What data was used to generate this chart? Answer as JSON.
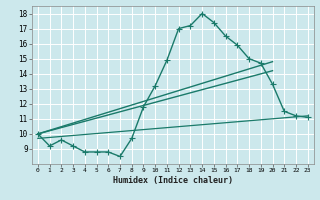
{
  "title": "",
  "xlabel": "Humidex (Indice chaleur)",
  "background_color": "#cce8ec",
  "grid_color": "#ffffff",
  "line_color": "#1a7a6a",
  "xlim": [
    -0.5,
    23.5
  ],
  "ylim": [
    8.0,
    18.5
  ],
  "xticks": [
    0,
    1,
    2,
    3,
    4,
    5,
    6,
    7,
    8,
    9,
    10,
    11,
    12,
    13,
    14,
    15,
    16,
    17,
    18,
    19,
    20,
    21,
    22,
    23
  ],
  "yticks": [
    9,
    10,
    11,
    12,
    13,
    14,
    15,
    16,
    17,
    18
  ],
  "series": [
    {
      "x": [
        0,
        1,
        2,
        3,
        4,
        5,
        6,
        7,
        8,
        9,
        10,
        11,
        12,
        13,
        14,
        15,
        16,
        17,
        18,
        19,
        20,
        21,
        22,
        23
      ],
      "y": [
        10.0,
        9.2,
        9.6,
        9.2,
        8.8,
        8.8,
        8.8,
        8.5,
        9.7,
        11.8,
        13.2,
        14.9,
        17.0,
        17.2,
        18.0,
        17.4,
        16.5,
        15.9,
        15.0,
        14.7,
        13.3,
        11.5,
        11.2,
        11.1
      ],
      "marker": "+",
      "linewidth": 1.0,
      "markersize": 4
    },
    {
      "x": [
        0,
        20
      ],
      "y": [
        10.0,
        14.8
      ],
      "marker": null,
      "linewidth": 1.0
    },
    {
      "x": [
        0,
        20
      ],
      "y": [
        10.0,
        14.2
      ],
      "marker": null,
      "linewidth": 1.0
    },
    {
      "x": [
        0,
        23
      ],
      "y": [
        9.7,
        11.2
      ],
      "marker": null,
      "linewidth": 0.9
    }
  ]
}
